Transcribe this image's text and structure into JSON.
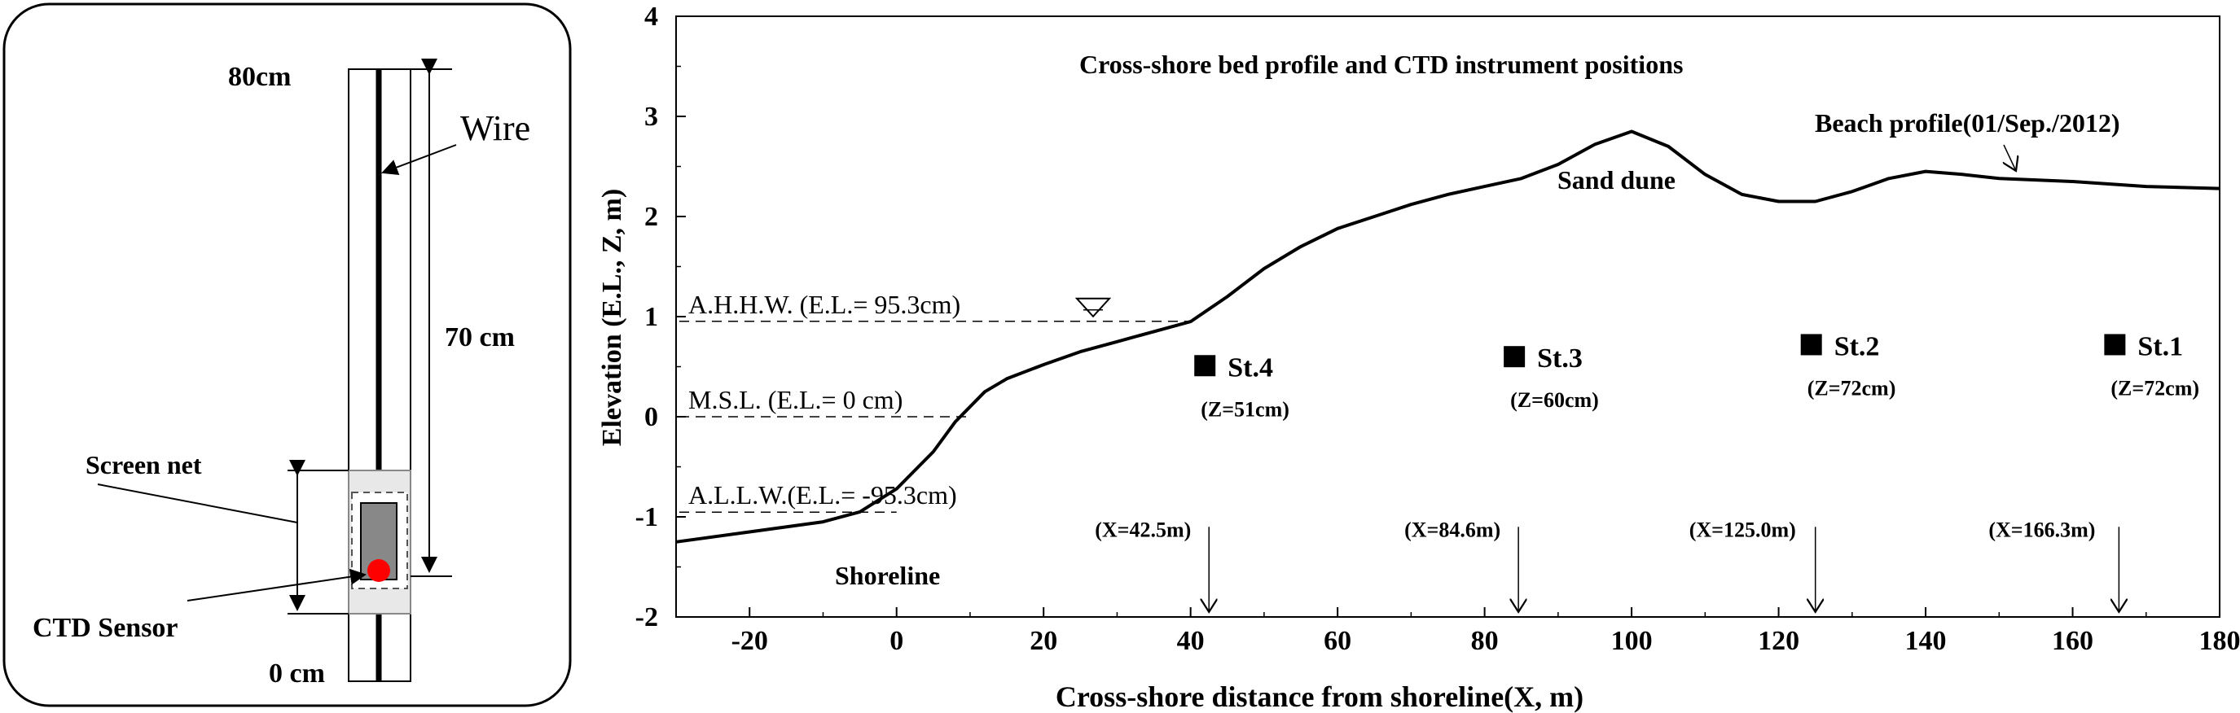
{
  "figure_a": {
    "label_top": "80cm",
    "label_bottom": "0 cm",
    "label_wire": "Wire",
    "label_length": "70 cm",
    "label_screen": "Screen net",
    "label_sensor": "CTD Sensor",
    "sensor_color": "#ff0000"
  },
  "figure_b": {
    "title": "Cross-shore bed profile and CTD instrument positions",
    "annotations": {
      "dune": "Sand dune",
      "shoreline": "Shoreline",
      "beach_profile": "Beach profile(01/Sep./2012)"
    },
    "datum_lines": [
      {
        "label": "A.H.H.W. (E.L.= 95.3cm)",
        "elevation": 0.953
      },
      {
        "label": "M.S.L. (E.L.= 0 cm)",
        "elevation": 0.0
      },
      {
        "label": "A.L.L.W.(E.L.= -95.3cm)",
        "elevation": -0.953
      }
    ]
  },
  "chart_data": {
    "type": "line",
    "xlabel": "Cross-shore distance from shoreline(X, m)",
    "ylabel": "Elevation (E.L., Z, m)",
    "xlim": [
      -30,
      180
    ],
    "ylim": [
      -2,
      4
    ],
    "xticks": [
      "-20",
      "0",
      "20",
      "40",
      "60",
      "80",
      "100",
      "120",
      "140",
      "160",
      "180"
    ],
    "yticks": [
      "-2",
      "-1",
      "0",
      "1",
      "2",
      "3",
      "4"
    ],
    "grid": false,
    "series": [
      {
        "name": "Beach profile(01/Sep./2012)",
        "x": [
          -30,
          -20,
          -10,
          -5,
          0,
          5,
          8,
          12,
          15,
          20,
          25,
          30,
          35,
          40,
          45,
          50,
          55,
          60,
          65,
          70,
          75,
          80,
          85,
          90,
          95,
          100,
          105,
          110,
          115,
          120,
          125,
          130,
          135,
          140,
          145,
          150,
          160,
          170,
          180
        ],
        "y": [
          -1.25,
          -1.15,
          -1.05,
          -0.95,
          -0.72,
          -0.35,
          -0.05,
          0.25,
          0.38,
          0.52,
          0.65,
          0.75,
          0.85,
          0.95,
          1.2,
          1.48,
          1.7,
          1.88,
          2.0,
          2.12,
          2.22,
          2.3,
          2.38,
          2.52,
          2.72,
          2.85,
          2.7,
          2.42,
          2.22,
          2.15,
          2.15,
          2.25,
          2.38,
          2.45,
          2.42,
          2.38,
          2.35,
          2.3,
          2.28
        ]
      }
    ],
    "stations": [
      {
        "name": "St.4",
        "x": 42.5,
        "z_label": "(Z=51cm)",
        "x_label": "(X=42.5m)",
        "marker_elevation": 0.51
      },
      {
        "name": "St.3",
        "x": 84.6,
        "z_label": "(Z=60cm)",
        "x_label": "(X=84.6m)",
        "marker_elevation": 0.6
      },
      {
        "name": "St.2",
        "x": 125.0,
        "z_label": "(Z=72cm)",
        "x_label": "(X=125.0m)",
        "marker_elevation": 0.72
      },
      {
        "name": "St.1",
        "x": 166.3,
        "z_label": "(Z=72cm)",
        "x_label": "(X=166.3m)",
        "marker_elevation": 0.72
      }
    ]
  }
}
